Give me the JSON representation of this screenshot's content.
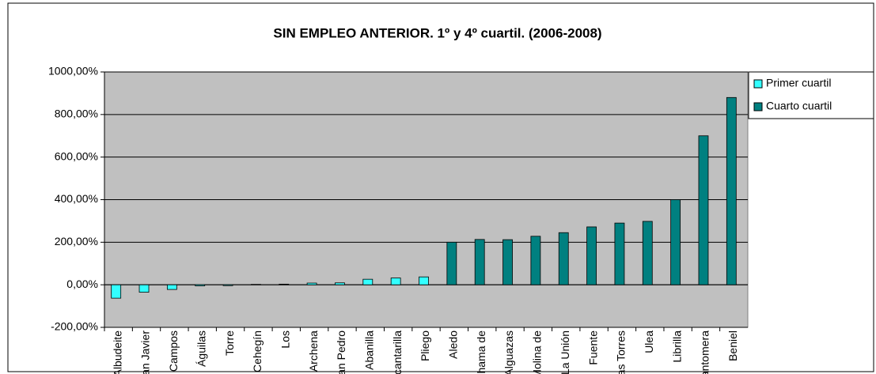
{
  "chart_data": {
    "type": "bar",
    "title": "SIN EMPLEO ANTERIOR. 1º y 4º cuartil. (2006-2008)",
    "categories": [
      "Albudeite",
      "San Javier",
      "Campos",
      "Águilas",
      "Torre",
      "Cehegín",
      "Los",
      "Archena",
      "San Pedro",
      "Abanilla",
      "Alcantarilla",
      "Pliego",
      "Aledo",
      "Alhama de",
      "Alguazas",
      "Molina de",
      "La Unión",
      "Fuente",
      "Las Torres",
      "Ulea",
      "Librilla",
      "Santomera",
      "Beniel"
    ],
    "series": [
      {
        "name": "Primer cuartil",
        "color": "#33ffff",
        "values": [
          -63,
          -35,
          -22,
          -5,
          -4,
          2,
          3,
          8,
          9,
          26,
          32,
          37,
          null,
          null,
          null,
          null,
          null,
          null,
          null,
          null,
          null,
          null,
          null
        ]
      },
      {
        "name": "Cuarto cuartil",
        "color": "#008080",
        "values": [
          null,
          null,
          null,
          null,
          null,
          null,
          null,
          null,
          null,
          null,
          null,
          null,
          200,
          213,
          212,
          228,
          245,
          272,
          290,
          298,
          400,
          700,
          880
        ]
      }
    ],
    "ylim": [
      -200,
      1000
    ],
    "yticks": [
      {
        "value": -200,
        "label": "-200,00%"
      },
      {
        "value": 0,
        "label": "0,00%"
      },
      {
        "value": 200,
        "label": "200,00%"
      },
      {
        "value": 400,
        "label": "400,00%"
      },
      {
        "value": 600,
        "label": "600,00%"
      },
      {
        "value": 800,
        "label": "800,00%"
      },
      {
        "value": 1000,
        "label": "1000,00%"
      }
    ],
    "grid": true,
    "legend": "right"
  }
}
